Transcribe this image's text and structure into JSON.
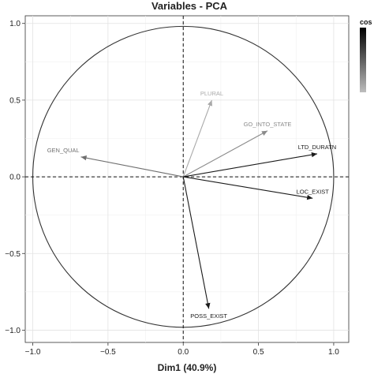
{
  "chart_data": {
    "type": "scatter",
    "title": "Variables - PCA",
    "xlabel": "Dim1 (40.9%)",
    "ylabel": "",
    "xlim": [
      -1.05,
      1.1
    ],
    "ylim": [
      -1.08,
      1.05
    ],
    "xticks": [
      -1.0,
      -0.5,
      0.0,
      0.5,
      1.0
    ],
    "yticks": [
      -1.0,
      -0.5,
      0.0,
      0.5,
      1.0
    ],
    "xtick_labels": [
      "−1.0",
      "−0.5",
      "0.0",
      "0.5",
      "1.0"
    ],
    "ytick_labels": [
      "−1.0",
      "−0.5",
      "0.0",
      "0.5",
      "1.0"
    ],
    "grid": true,
    "legend": {
      "title": "cos",
      "placement": "top-right"
    },
    "variables": [
      {
        "name": "PLURAL",
        "x": 0.19,
        "y": 0.5,
        "color": "#a9a9a9"
      },
      {
        "name": "GO_INTO_STATE",
        "x": 0.56,
        "y": 0.3,
        "color": "#8a8a8a"
      },
      {
        "name": "LTD_DURATN",
        "x": 0.89,
        "y": 0.15,
        "color": "#1a1a1a"
      },
      {
        "name": "GEN_QUAL",
        "x": -0.68,
        "y": 0.13,
        "color": "#6f6f6f"
      },
      {
        "name": "LOC_EXIST",
        "x": 0.86,
        "y": -0.14,
        "color": "#1a1a1a"
      },
      {
        "name": "POSS_EXIST",
        "x": 0.17,
        "y": -0.86,
        "color": "#1a1a1a"
      }
    ]
  }
}
